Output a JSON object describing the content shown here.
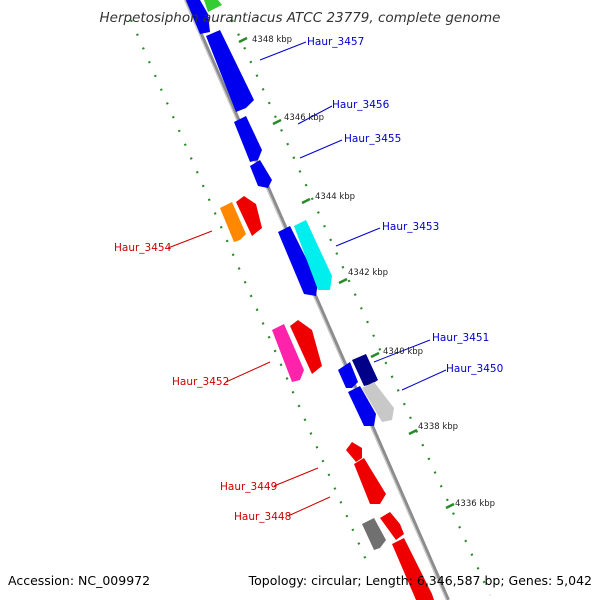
{
  "title": "Herpetosiphon aurantiacus ATCC 23779, complete genome",
  "footer": {
    "accession": "Accession: NC_009972",
    "summary": "Topology: circular; Length: 6,346,587 bp; Genes: 5,042"
  },
  "colors": {
    "forward_label": "#0000cc",
    "reverse_label": "#cc0000",
    "backbone": "#8c8c8c",
    "tick": "#2a8a2a"
  },
  "kbp_labels": [
    "4348 kbp",
    "4346 kbp",
    "4344 kbp",
    "4342 kbp",
    "4340 kbp",
    "4338 kbp",
    "4336 kbp"
  ],
  "gene_labels": {
    "forward": [
      "Haur_3457",
      "Haur_3456",
      "Haur_3455",
      "Haur_3453",
      "Haur_3451",
      "Haur_3450"
    ],
    "reverse": [
      "Haur_3454",
      "Haur_3452",
      "Haur_3449",
      "Haur_3448"
    ]
  }
}
